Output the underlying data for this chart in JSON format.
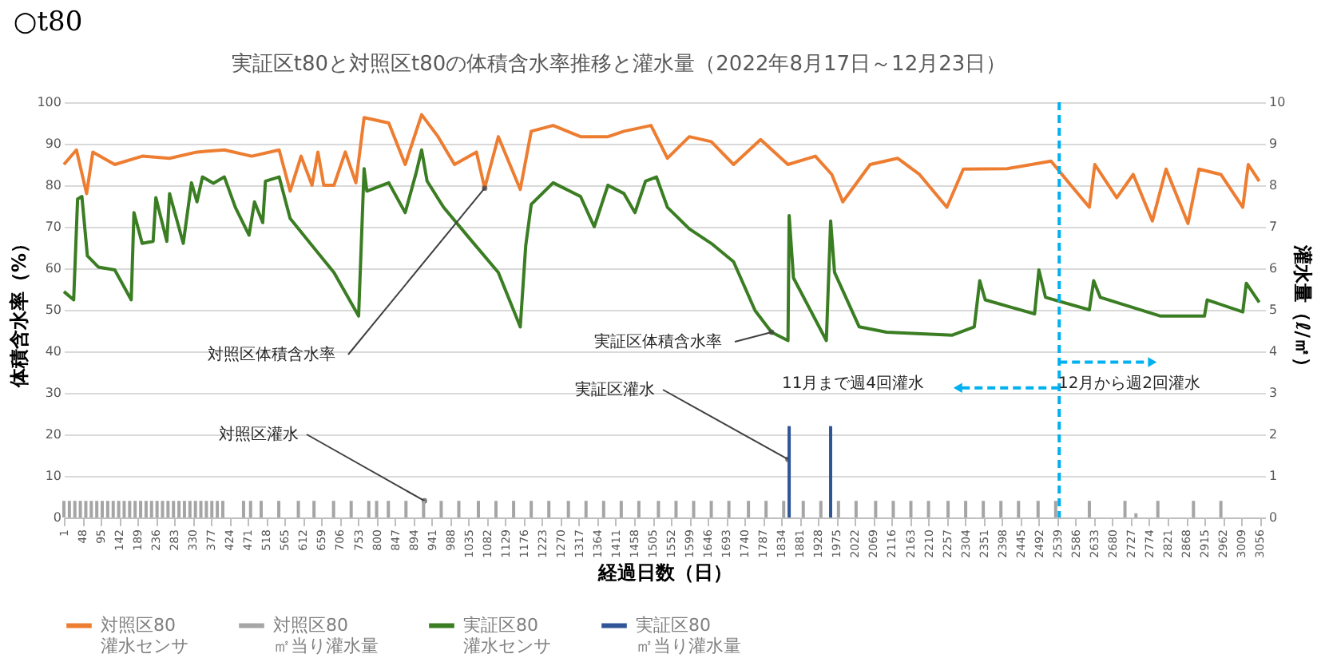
{
  "chart_data": {
    "type": "line",
    "title": "実証区t80と対照区t80の体積含水率推移と灌水量（2022年8月17日～12月23日）",
    "xlabel": "経過日数（日）",
    "ylabel": "体積含水率（%）",
    "y2label": "灌水量（ℓ/㎡）",
    "xlim": [
      1,
      3070
    ],
    "xticks": [
      1,
      48,
      95,
      142,
      189,
      236,
      283,
      330,
      377,
      424,
      471,
      518,
      565,
      612,
      659,
      706,
      753,
      800,
      847,
      894,
      941,
      988,
      1035,
      1082,
      1129,
      1176,
      1223,
      1270,
      1317,
      1364,
      1411,
      1458,
      1505,
      1552,
      1599,
      1646,
      1693,
      1740,
      1787,
      1834,
      1881,
      1928,
      1975,
      2022,
      2069,
      2116,
      2163,
      2210,
      2257,
      2304,
      2351,
      2398,
      2445,
      2492,
      2539,
      2586,
      2633,
      2680,
      2727,
      2774,
      2821,
      2868,
      2915,
      2962,
      3009,
      3056
    ],
    "ylim": [
      0,
      100
    ],
    "yticks": [
      0,
      10,
      20,
      30,
      40,
      50,
      60,
      70,
      80,
      90,
      100
    ],
    "y2lim": [
      0,
      10
    ],
    "y2ticks": [
      0,
      1,
      2,
      3,
      4,
      5,
      6,
      7,
      8,
      9,
      10
    ],
    "grid": "y",
    "legend": "bottom",
    "series": [
      {
        "name": "対照区80\n灌水センサ",
        "color": "#ed7d31",
        "x": [
          1,
          33,
          59,
          75,
          131,
          201,
          271,
          341,
          411,
          481,
          551,
          579,
          607,
          635,
          650,
          665,
          691,
          720,
          747,
          768,
          831,
          873,
          915,
          957,
          999,
          1055,
          1076,
          1111,
          1167,
          1195,
          1251,
          1321,
          1391,
          1432,
          1501,
          1543,
          1599,
          1655,
          1712,
          1781,
          1851,
          1921,
          1963,
          1991,
          2061,
          2131,
          2187,
          2257,
          2299,
          2411,
          2523,
          2565,
          2621,
          2635,
          2691,
          2733,
          2782,
          2817,
          2873,
          2901,
          2957,
          3013,
          3027,
          3055
        ],
        "values": [
          85,
          88.5,
          78,
          88,
          85,
          87,
          86.5,
          88,
          88.5,
          87,
          88.5,
          78.6,
          87,
          80,
          88,
          80,
          80,
          88,
          80.6,
          96.3,
          95,
          85,
          97,
          91.7,
          85,
          88,
          79.3,
          91.7,
          79,
          93,
          94.4,
          91.7,
          91.7,
          93,
          94.4,
          86.5,
          91.7,
          90.5,
          85,
          91,
          85,
          87,
          82.6,
          76,
          85,
          86.5,
          82.6,
          74.7,
          83.9,
          84,
          85.8,
          81,
          74.7,
          85,
          77,
          82.6,
          71.4,
          83.9,
          70.8,
          83.9,
          82.6,
          74.7,
          85,
          81
        ]
      },
      {
        "name": "対照区80\n㎡当り灌水量",
        "type": "bar",
        "axis": "y2",
        "color": "#a5a5a5",
        "x": [
          1,
          15,
          29,
          43,
          57,
          71,
          85,
          99,
          113,
          127,
          141,
          155,
          169,
          183,
          197,
          211,
          225,
          239,
          253,
          267,
          281,
          295,
          309,
          323,
          337,
          351,
          365,
          379,
          393,
          407,
          460,
          478,
          505,
          550,
          600,
          640,
          690,
          735,
          780,
          800,
          830,
          875,
          920,
          965,
          1010,
          1060,
          1105,
          1150,
          1195,
          1240,
          1290,
          1335,
          1380,
          1425,
          1470,
          1520,
          1565,
          1610,
          1655,
          1700,
          1750,
          1795,
          1840,
          1890,
          1935,
          1980,
          2025,
          2075,
          2120,
          2165,
          2210,
          2260,
          2305,
          2350,
          2395,
          2440,
          2490,
          2535,
          2621,
          2712,
          2740,
          2796,
          2887,
          2957
        ],
        "values": [
          0.4,
          0.4,
          0.4,
          0.4,
          0.4,
          0.4,
          0.4,
          0.4,
          0.4,
          0.4,
          0.4,
          0.4,
          0.4,
          0.4,
          0.4,
          0.4,
          0.4,
          0.4,
          0.4,
          0.4,
          0.4,
          0.4,
          0.4,
          0.4,
          0.4,
          0.4,
          0.4,
          0.4,
          0.4,
          0.4,
          0.4,
          0.4,
          0.4,
          0.4,
          0.4,
          0.4,
          0.4,
          0.4,
          0.4,
          0.4,
          0.4,
          0.4,
          0.4,
          0.4,
          0.4,
          0.4,
          0.4,
          0.4,
          0.4,
          0.4,
          0.4,
          0.4,
          0.4,
          0.4,
          0.4,
          0.4,
          0.4,
          0.4,
          0.4,
          0.4,
          0.4,
          0.4,
          0.4,
          0.4,
          0.4,
          0.4,
          0.4,
          0.4,
          0.4,
          0.4,
          0.4,
          0.4,
          0.4,
          0.4,
          0.4,
          0.4,
          0.4,
          0.4,
          0.4,
          0.4,
          0.1,
          0.4,
          0.4,
          0.4
        ]
      },
      {
        "name": "実証区80\n灌水センサ",
        "color": "#3a7d22",
        "x": [
          1,
          26,
          36,
          47,
          61,
          89,
          131,
          173,
          180,
          201,
          229,
          236,
          264,
          271,
          306,
          327,
          341,
          355,
          383,
          411,
          439,
          474,
          488,
          509,
          516,
          551,
          579,
          635,
          691,
          754,
          768,
          775,
          831,
          873,
          901,
          915,
          929,
          971,
          1041,
          1111,
          1167,
          1181,
          1195,
          1251,
          1321,
          1356,
          1391,
          1432,
          1460,
          1487,
          1515,
          1543,
          1599,
          1655,
          1712,
          1767,
          1809,
          1851,
          1854,
          1865,
          1949,
          1960,
          1970,
          2033,
          2103,
          2271,
          2327,
          2341,
          2355,
          2481,
          2492,
          2509,
          2621,
          2632,
          2649,
          2803,
          2915,
          2922,
          3013,
          3022,
          3055
        ],
        "values": [
          54.4,
          52.4,
          76.7,
          77.3,
          63,
          60.3,
          59.6,
          52.4,
          73.4,
          66,
          66.5,
          77,
          66.5,
          78,
          66,
          80.6,
          76,
          82,
          80.5,
          82,
          74.7,
          68,
          76,
          71,
          81,
          82,
          72,
          65.5,
          59,
          48.5,
          84,
          78.6,
          80.6,
          73.4,
          83,
          88.5,
          81,
          74.7,
          66.8,
          59,
          45.9,
          65.5,
          75.4,
          80.6,
          77.3,
          70,
          80,
          78,
          73.4,
          81,
          82,
          74.7,
          69.5,
          66,
          61.6,
          49.8,
          44.6,
          42.6,
          72.7,
          57.7,
          42.6,
          71.4,
          59,
          45.9,
          44.6,
          43.9,
          45.9,
          57,
          52.4,
          49,
          59.6,
          53,
          50,
          57,
          53,
          48.5,
          48.5,
          52.4,
          49.5,
          56.4,
          51.8
        ]
      },
      {
        "name": "実証区80\n㎡当り灌水量",
        "type": "bar",
        "axis": "y2",
        "color": "#2f5597",
        "x": [
          1854,
          1960
        ],
        "values": [
          2.2,
          2.2
        ]
      }
    ],
    "ref_lines": [
      {
        "axis": "x",
        "value": 2544,
        "color": "#00b0f0",
        "line_style": "dashed"
      }
    ],
    "annotations": [
      "○t80",
      {
        "text": "対照区体積含水率",
        "x": 1076,
        "y": 79.3
      },
      {
        "text": "実証区体積含水率",
        "x": 1809,
        "y": 44.6
      },
      {
        "text": "実証区灌水",
        "x": 1851,
        "y": 14
      },
      {
        "text": "対照区灌水",
        "x": 922,
        "y": 4
      },
      {
        "text": "11月まで週4回灌水",
        "x": 2285,
        "y": 31.2
      },
      {
        "text": "12月から週2回灌水",
        "x": 2782,
        "y": 37.4
      }
    ]
  }
}
